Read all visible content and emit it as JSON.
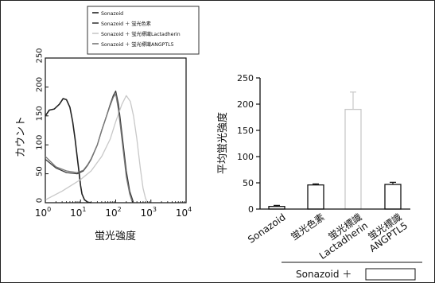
{
  "chart_data": [
    {
      "type": "line",
      "xlabel": "蛍光強度",
      "ylabel": "カウント",
      "xscale": "log",
      "xlim": [
        1,
        10000
      ],
      "ylim": [
        0,
        250
      ],
      "x_ticks": [
        {
          "base": "10",
          "exp": "0"
        },
        {
          "base": "10",
          "exp": "1"
        },
        {
          "base": "10",
          "exp": "2"
        },
        {
          "base": "10",
          "exp": "3"
        },
        {
          "base": "10",
          "exp": "4"
        }
      ],
      "y_ticks": [
        "0",
        "50",
        "100",
        "150",
        "200",
        "250"
      ],
      "legend": [
        "Sonazoid",
        "Sonazoid ＋ 蛍光色素",
        "Sonazoid ＋ 蛍光標識Lactadherin",
        "Sonazoid ＋ 蛍光標識ANGPTL5"
      ],
      "series": [
        {
          "name": "Sonazoid",
          "color": "#222222",
          "width": 1.6,
          "x": [
            1,
            1.3,
            1.8,
            2.5,
            3.2,
            4,
            5,
            6,
            7,
            8,
            9,
            10,
            11,
            13,
            16,
            20
          ],
          "y": [
            150,
            160,
            162,
            170,
            180,
            178,
            165,
            140,
            110,
            80,
            55,
            30,
            15,
            5,
            1,
            0
          ]
        },
        {
          "name": "Sonazoid ＋ 蛍光色素",
          "color": "#3a3a3a",
          "width": 1.3,
          "x": [
            1,
            2,
            4,
            8,
            12,
            16,
            20,
            30,
            40,
            55,
            70,
            85,
            100,
            120,
            150,
            200,
            250,
            320
          ],
          "y": [
            75,
            60,
            52,
            50,
            55,
            65,
            75,
            100,
            125,
            150,
            170,
            185,
            193,
            170,
            120,
            55,
            20,
            0
          ]
        },
        {
          "name": "Sonazoid ＋ 蛍光標識Lactadherin",
          "color": "#c8c8c8",
          "width": 1.3,
          "x": [
            1,
            3,
            10,
            20,
            40,
            70,
            100,
            150,
            200,
            260,
            320,
            400,
            500,
            600,
            700,
            800
          ],
          "y": [
            5,
            20,
            40,
            55,
            80,
            110,
            140,
            170,
            185,
            175,
            150,
            110,
            60,
            25,
            8,
            0
          ]
        },
        {
          "name": "Sonazoid ＋ 蛍光標識ANGPTL5",
          "color": "#777777",
          "width": 1.3,
          "x": [
            1,
            2,
            4,
            8,
            12,
            16,
            20,
            30,
            40,
            55,
            70,
            85,
            100,
            120,
            150,
            200,
            250,
            300
          ],
          "y": [
            80,
            62,
            55,
            52,
            56,
            66,
            76,
            100,
            125,
            150,
            168,
            182,
            188,
            160,
            110,
            45,
            15,
            0
          ]
        }
      ]
    },
    {
      "type": "bar",
      "ylabel": "平均蛍光強度",
      "ylim": [
        0,
        250
      ],
      "y_ticks": [
        "0",
        "50",
        "100",
        "150",
        "200",
        "250"
      ],
      "categories": [
        [
          "Sonazoid"
        ],
        [
          "蛍光色素"
        ],
        [
          "蛍光標識",
          "Lactadherin"
        ],
        [
          "蛍光標識",
          "ANGPTL5"
        ]
      ],
      "values": [
        5,
        46,
        190,
        47
      ],
      "errors": [
        2,
        2,
        33,
        4
      ],
      "bar_colors": [
        "#111111",
        "#111111",
        "#c8c8c8",
        "#111111"
      ],
      "group_label": "Sonazoid ＋"
    }
  ]
}
